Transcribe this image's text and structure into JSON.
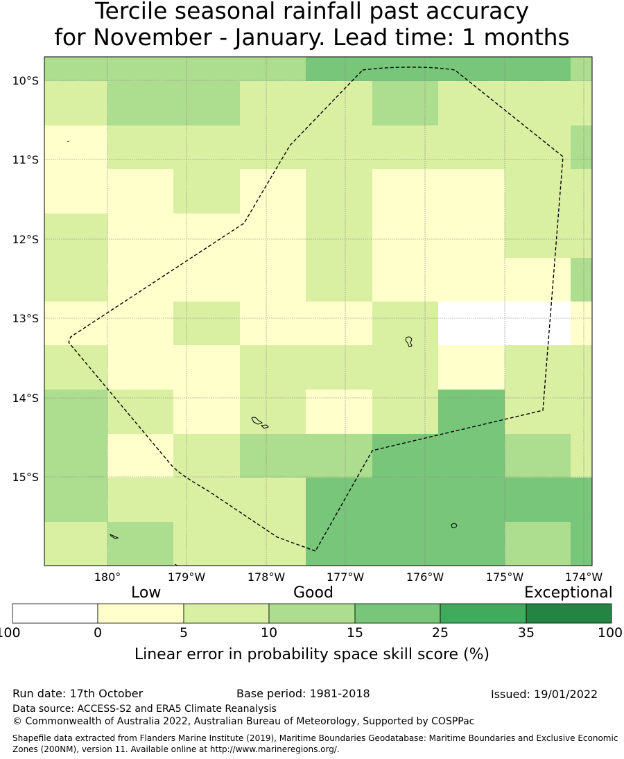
{
  "title": {
    "line1": "Tercile seasonal rainfall past accuracy",
    "line2": "for November - January. Lead time: 1 months"
  },
  "map": {
    "lat_labels": [
      "10°S",
      "11°S",
      "12°S",
      "13°S",
      "14°S",
      "15°S"
    ],
    "lon_labels": [
      "180°",
      "179°W",
      "178°W",
      "177°W",
      "176°W",
      "175°W",
      "174°W"
    ],
    "grid_columns": 9,
    "grid_rows": 12,
    "cell_classes": [
      [
        3,
        3,
        3,
        3,
        4,
        4,
        4,
        4,
        3
      ],
      [
        2,
        3,
        3,
        2,
        2,
        3,
        2,
        2,
        2
      ],
      [
        1,
        2,
        2,
        2,
        2,
        2,
        2,
        2,
        3
      ],
      [
        1,
        1,
        2,
        1,
        2,
        1,
        1,
        2,
        2
      ],
      [
        2,
        1,
        1,
        1,
        2,
        1,
        1,
        2,
        2
      ],
      [
        2,
        1,
        1,
        1,
        2,
        1,
        1,
        1,
        3
      ],
      [
        1,
        1,
        2,
        1,
        1,
        2,
        0,
        0,
        1
      ],
      [
        2,
        1,
        1,
        2,
        2,
        2,
        1,
        2,
        2
      ],
      [
        3,
        2,
        1,
        2,
        1,
        2,
        4,
        2,
        2
      ],
      [
        3,
        1,
        2,
        3,
        3,
        4,
        4,
        3,
        2
      ],
      [
        3,
        2,
        2,
        2,
        4,
        4,
        4,
        4,
        4
      ],
      [
        2,
        3,
        2,
        2,
        4,
        4,
        4,
        3,
        4
      ]
    ]
  },
  "legend": {
    "categories": [
      "Low",
      "Good",
      "Exceptional"
    ],
    "ticks": [
      "-100",
      "0",
      "5",
      "10",
      "15",
      "25",
      "35",
      "100"
    ],
    "colors": [
      "#ffffff",
      "#ffffcc",
      "#d9f0a3",
      "#addd8e",
      "#78c679",
      "#41ab5d",
      "#238443"
    ],
    "label": "Linear error in probability space skill score (%)"
  },
  "footer": {
    "run_date": "Run date: 17th October",
    "base_period": "Base period: 1981-2018",
    "issued": "Issued: 19/01/2022",
    "data_source": "Data source: ACCESS-S2 and ERA5 Climate Reanalysis",
    "copyright": "© Commonwealth of Australia 2022, Australian Bureau of Meteorology, Supported by COSPPac",
    "shapefile": "Shapefile data extracted from Flanders Marine Institute (2019), Maritime Boundaries Geodatabase: Maritime Boundaries and Exclusive Economic Zones (200NM), version 11. Available online at http://www.marineregions.org/."
  }
}
